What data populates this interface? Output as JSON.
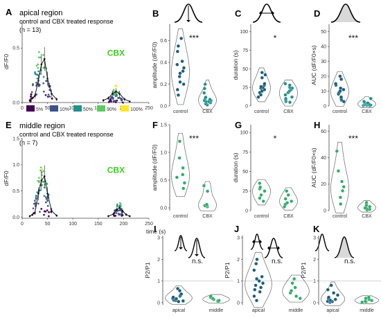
{
  "colors": {
    "viridis": [
      "#440154",
      "#3b528b",
      "#21918c",
      "#5ec962",
      "#fde725"
    ],
    "control": "#1b5f7e",
    "cbx": "#21918c",
    "middle": "#2fae6a",
    "cbx_label": "#3ccf1f"
  },
  "icons": {
    "B": "single-peak-amplitude-arrow-icon",
    "C": "single-peak-duration-arrow-icon",
    "D": "single-peak-shaded-area-icon",
    "I": "two-peaks-amplitude-arrows-icon",
    "J": "two-peaks-duration-arrows-icon",
    "K": "two-peaks-shaded-area-icon"
  },
  "chart_data": [
    {
      "id": "A",
      "type": "scatter",
      "title": "apical region",
      "subtitle": "control and CBX treated response",
      "n_label": "(n = 13)",
      "annotation": "CBX",
      "xlabel": "",
      "ylabel": "dF/F0",
      "xlim": [
        0,
        250
      ],
      "ylim": [
        0,
        0.75
      ],
      "xticks": [
        "0",
        "50",
        "100",
        "150",
        "200",
        "250"
      ],
      "yticks": [
        "0.0",
        "0.5"
      ],
      "legend": [
        "5%",
        "10%",
        "50%",
        "90%",
        "100%"
      ],
      "legend_position": "bottom-left",
      "clusters": [
        {
          "center": 38,
          "spread": 22,
          "peak": 0.62,
          "count": 60
        },
        {
          "center": 185,
          "spread": 14,
          "peak": 0.17,
          "count": 45
        }
      ],
      "mean_trace": [
        [
          15,
          0.02
        ],
        [
          25,
          0.06
        ],
        [
          32,
          0.2
        ],
        [
          38,
          0.35
        ],
        [
          44,
          0.4
        ],
        [
          50,
          0.22
        ],
        [
          58,
          0.08
        ],
        [
          68,
          0.03
        ],
        [
          160,
          0.02
        ],
        [
          170,
          0.04
        ],
        [
          178,
          0.08
        ],
        [
          185,
          0.1
        ],
        [
          192,
          0.08
        ],
        [
          202,
          0.03
        ],
        [
          212,
          0.01
        ]
      ]
    },
    {
      "id": "B",
      "type": "scatter",
      "subtype": "violin",
      "xlabel": "",
      "ylabel": "amplitude (dF/F0)",
      "categories": [
        "control",
        "CBX"
      ],
      "ylim": [
        0,
        0.75
      ],
      "yticks": [
        "0.0",
        "0.2",
        "0.4",
        "0.6"
      ],
      "significance": "***",
      "series": [
        {
          "name": "control",
          "values": [
            0.1,
            0.15,
            0.2,
            0.22,
            0.27,
            0.3,
            0.32,
            0.35,
            0.38,
            0.41,
            0.5,
            0.55,
            0.62
          ]
        },
        {
          "name": "CBX",
          "values": [
            0.01,
            0.02,
            0.03,
            0.04,
            0.04,
            0.05,
            0.05,
            0.06,
            0.07,
            0.08,
            0.12,
            0.16,
            0.2
          ]
        }
      ]
    },
    {
      "id": "C",
      "type": "scatter",
      "subtype": "violin",
      "xlabel": "",
      "ylabel": "duration (s)",
      "categories": [
        "control",
        "CBX"
      ],
      "ylim": [
        0,
        110
      ],
      "yticks": [
        "0",
        "25",
        "50",
        "75",
        "100"
      ],
      "significance": "*",
      "series": [
        {
          "name": "control",
          "values": [
            12,
            15,
            18,
            20,
            22,
            24,
            25,
            26,
            28,
            30,
            38,
            42,
            45
          ]
        },
        {
          "name": "CBX",
          "values": [
            5,
            6,
            8,
            10,
            12,
            15,
            18,
            20,
            22,
            24,
            25,
            28,
            30
          ]
        }
      ]
    },
    {
      "id": "D",
      "type": "scatter",
      "subtype": "violin",
      "xlabel": "",
      "ylabel": "AUC (dF/F0×s)",
      "categories": [
        "control",
        "CBX"
      ],
      "ylim": [
        0,
        55
      ],
      "yticks": [
        "0",
        "10",
        "20",
        "30",
        "40",
        "50"
      ],
      "significance": "***",
      "series": [
        {
          "name": "control",
          "values": [
            3,
            4,
            5,
            6,
            8,
            9,
            10,
            11,
            12,
            14,
            15,
            18,
            20
          ]
        },
        {
          "name": "CBX",
          "values": [
            0.2,
            0.3,
            0.5,
            0.6,
            0.8,
            1,
            1.2,
            1.5,
            1.8,
            2,
            2.5,
            3,
            5
          ]
        }
      ]
    },
    {
      "id": "E",
      "type": "scatter",
      "title": "middle region",
      "subtitle": "control and CBX treated response",
      "n_label": "(n = 7)",
      "annotation": "CBX",
      "xlabel": "time (s)",
      "ylabel": "dF/F0",
      "xlim": [
        0,
        250
      ],
      "ylim": [
        -0.02,
        1.5
      ],
      "xticks": [
        "0",
        "50",
        "100",
        "150",
        "200",
        "250"
      ],
      "yticks": [
        "0.0",
        "0.5",
        "1.0",
        "1.5"
      ],
      "clusters": [
        {
          "center": 40,
          "spread": 20,
          "peak": 1.25,
          "count": 55
        },
        {
          "center": 190,
          "spread": 10,
          "peak": 0.45,
          "count": 35
        }
      ],
      "mean_trace": [
        [
          15,
          0.02
        ],
        [
          25,
          0.08
        ],
        [
          32,
          0.45
        ],
        [
          38,
          0.7
        ],
        [
          44,
          0.78
        ],
        [
          50,
          0.45
        ],
        [
          58,
          0.12
        ],
        [
          68,
          0.03
        ],
        [
          170,
          0.02
        ],
        [
          180,
          0.06
        ],
        [
          187,
          0.15
        ],
        [
          192,
          0.18
        ],
        [
          198,
          0.12
        ],
        [
          205,
          0.05
        ],
        [
          212,
          0.02
        ]
      ]
    },
    {
      "id": "F",
      "type": "scatter",
      "subtype": "violin",
      "xlabel": "",
      "ylabel": "amplitude (dF/F0)",
      "categories": [
        "control",
        "CBX"
      ],
      "ylim": [
        -0.05,
        1.5
      ],
      "yticks": [
        "0.0",
        "0.5",
        "1.0",
        "1.5"
      ],
      "significance": "***",
      "series": [
        {
          "name": "control",
          "values": [
            0.35,
            0.45,
            0.55,
            0.6,
            0.72,
            0.9,
            1.2
          ]
        },
        {
          "name": "CBX",
          "values": [
            0.02,
            0.03,
            0.04,
            0.05,
            0.06,
            0.3,
            0.4
          ]
        }
      ]
    },
    {
      "id": "G",
      "type": "scatter",
      "subtype": "violin",
      "xlabel": "",
      "ylabel": "duration (s)",
      "categories": [
        "control",
        "CBX"
      ],
      "ylim": [
        0,
        110
      ],
      "yticks": [
        "0",
        "25",
        "50",
        "75",
        "100"
      ],
      "significance": "*",
      "series": [
        {
          "name": "control",
          "values": [
            12,
            16,
            20,
            25,
            28,
            30,
            35
          ]
        },
        {
          "name": "CBX",
          "values": [
            5,
            8,
            10,
            12,
            15,
            20,
            25
          ]
        }
      ]
    },
    {
      "id": "H",
      "type": "scatter",
      "subtype": "violin",
      "xlabel": "",
      "ylabel": "AUC (dF/F0×s)",
      "categories": [
        "control",
        "CBX"
      ],
      "ylim": [
        0,
        65
      ],
      "yticks": [
        "0",
        "20",
        "40",
        "60"
      ],
      "significance": "***",
      "series": [
        {
          "name": "control",
          "values": [
            5,
            10,
            15,
            18,
            22,
            30,
            45
          ]
        },
        {
          "name": "CBX",
          "values": [
            0.5,
            1,
            1.5,
            2,
            3,
            4,
            6
          ]
        }
      ]
    },
    {
      "id": "I",
      "type": "scatter",
      "subtype": "violin",
      "xlabel": "",
      "ylabel": "P2/P1",
      "categories": [
        "apical",
        "middle"
      ],
      "ylim": [
        -0.1,
        3.1
      ],
      "yticks": [
        "0",
        "1",
        "2",
        "3"
      ],
      "reference_line": 1,
      "significance": "n.s.",
      "series": [
        {
          "name": "apical",
          "values": [
            0.05,
            0.08,
            0.1,
            0.12,
            0.15,
            0.18,
            0.2,
            0.25,
            0.3,
            0.35,
            0.4,
            0.55,
            0.65
          ]
        },
        {
          "name": "middle",
          "values": [
            0.05,
            0.08,
            0.1,
            0.15,
            0.2,
            0.25,
            0.3
          ]
        }
      ]
    },
    {
      "id": "J",
      "type": "scatter",
      "subtype": "violin",
      "xlabel": "",
      "ylabel": "P2/P1",
      "categories": [
        "apical",
        "middle"
      ],
      "ylim": [
        -0.1,
        3.1
      ],
      "yticks": [
        "0",
        "1",
        "2",
        "3"
      ],
      "reference_line": 1,
      "significance": "n.s.",
      "series": [
        {
          "name": "apical",
          "values": [
            0.1,
            0.3,
            0.5,
            0.6,
            0.7,
            0.8,
            0.9,
            1.0,
            1.1,
            1.2,
            1.5,
            1.8,
            2.0
          ]
        },
        {
          "name": "middle",
          "values": [
            0.2,
            0.3,
            0.45,
            0.55,
            0.7,
            0.9,
            1.1
          ]
        }
      ]
    },
    {
      "id": "K",
      "type": "scatter",
      "subtype": "violin",
      "xlabel": "",
      "ylabel": "P2/P1",
      "categories": [
        "apical",
        "middle"
      ],
      "ylim": [
        -0.1,
        3.1
      ],
      "yticks": [
        "0",
        "1",
        "2",
        "3"
      ],
      "reference_line": 1,
      "significance": "n.s.",
      "series": [
        {
          "name": "apical",
          "values": [
            0.02,
            0.05,
            0.06,
            0.08,
            0.1,
            0.12,
            0.15,
            0.2,
            0.25,
            0.35,
            0.45,
            0.6,
            0.8
          ]
        },
        {
          "name": "middle",
          "values": [
            0.02,
            0.04,
            0.06,
            0.1,
            0.15,
            0.2,
            0.25
          ]
        }
      ]
    }
  ]
}
